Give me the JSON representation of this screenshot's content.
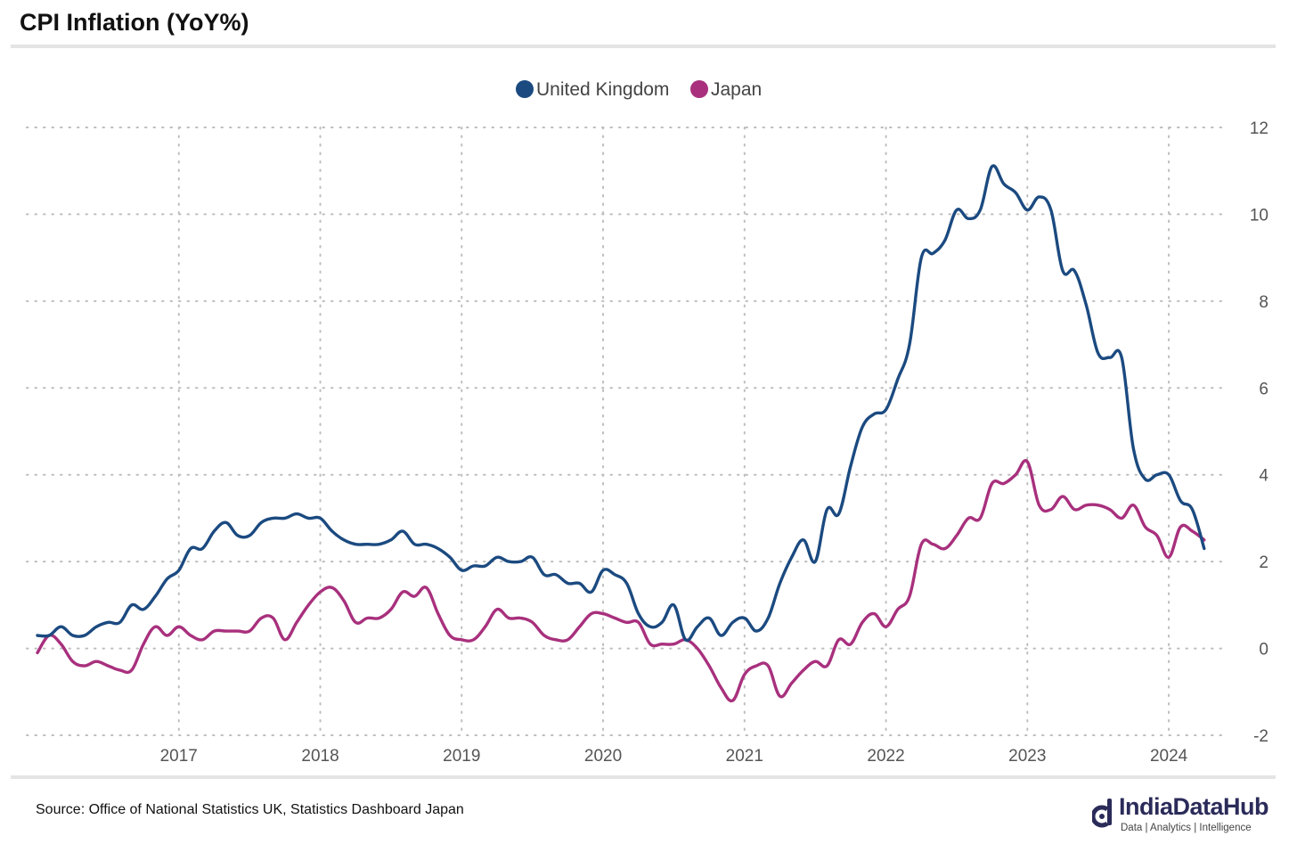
{
  "header": {
    "title": "CPI Inflation (YoY%)"
  },
  "footer": {
    "source": "Source: Office of National Statistics UK, Statistics Dashboard Japan",
    "brand_name": "IndiaDataHub",
    "brand_tagline": "Data | Analytics | Intelligence",
    "brand_icon": "india-data-hub-logo-icon"
  },
  "chart_data": {
    "type": "line",
    "title": "CPI Inflation (YoY%)",
    "xlabel": "",
    "ylabel": "",
    "x_ticks": [
      "2017",
      "2018",
      "2019",
      "2020",
      "2021",
      "2022",
      "2023",
      "2024"
    ],
    "y_ticks": [
      -2,
      0,
      2,
      4,
      6,
      8,
      10,
      12
    ],
    "ylim": [
      -2,
      12
    ],
    "xlim": [
      "2016-01",
      "2024-05"
    ],
    "y_axis_position": "right",
    "grid": "dotted",
    "legend_position": "top-center",
    "x": [
      "2016-01",
      "2016-02",
      "2016-03",
      "2016-04",
      "2016-05",
      "2016-06",
      "2016-07",
      "2016-08",
      "2016-09",
      "2016-10",
      "2016-11",
      "2016-12",
      "2017-01",
      "2017-02",
      "2017-03",
      "2017-04",
      "2017-05",
      "2017-06",
      "2017-07",
      "2017-08",
      "2017-09",
      "2017-10",
      "2017-11",
      "2017-12",
      "2018-01",
      "2018-02",
      "2018-03",
      "2018-04",
      "2018-05",
      "2018-06",
      "2018-07",
      "2018-08",
      "2018-09",
      "2018-10",
      "2018-11",
      "2018-12",
      "2019-01",
      "2019-02",
      "2019-03",
      "2019-04",
      "2019-05",
      "2019-06",
      "2019-07",
      "2019-08",
      "2019-09",
      "2019-10",
      "2019-11",
      "2019-12",
      "2020-01",
      "2020-02",
      "2020-03",
      "2020-04",
      "2020-05",
      "2020-06",
      "2020-07",
      "2020-08",
      "2020-09",
      "2020-10",
      "2020-11",
      "2020-12",
      "2021-01",
      "2021-02",
      "2021-03",
      "2021-04",
      "2021-05",
      "2021-06",
      "2021-07",
      "2021-08",
      "2021-09",
      "2021-10",
      "2021-11",
      "2021-12",
      "2022-01",
      "2022-02",
      "2022-03",
      "2022-04",
      "2022-05",
      "2022-06",
      "2022-07",
      "2022-08",
      "2022-09",
      "2022-10",
      "2022-11",
      "2022-12",
      "2023-01",
      "2023-02",
      "2023-03",
      "2023-04",
      "2023-05",
      "2023-06",
      "2023-07",
      "2023-08",
      "2023-09",
      "2023-10",
      "2023-11",
      "2023-12",
      "2024-01",
      "2024-02",
      "2024-03",
      "2024-04"
    ],
    "series": [
      {
        "name": "United Kingdom",
        "color": "#1b4a80",
        "values": [
          0.3,
          0.3,
          0.5,
          0.3,
          0.3,
          0.5,
          0.6,
          0.6,
          1.0,
          0.9,
          1.2,
          1.6,
          1.8,
          2.3,
          2.3,
          2.7,
          2.9,
          2.6,
          2.6,
          2.9,
          3.0,
          3.0,
          3.1,
          3.0,
          3.0,
          2.7,
          2.5,
          2.4,
          2.4,
          2.4,
          2.5,
          2.7,
          2.4,
          2.4,
          2.3,
          2.1,
          1.8,
          1.9,
          1.9,
          2.1,
          2.0,
          2.0,
          2.1,
          1.7,
          1.7,
          1.5,
          1.5,
          1.3,
          1.8,
          1.7,
          1.5,
          0.8,
          0.5,
          0.6,
          1.0,
          0.2,
          0.5,
          0.7,
          0.3,
          0.6,
          0.7,
          0.4,
          0.7,
          1.5,
          2.1,
          2.5,
          2.0,
          3.2,
          3.1,
          4.2,
          5.1,
          5.4,
          5.5,
          6.2,
          7.0,
          9.0,
          9.1,
          9.4,
          10.1,
          9.9,
          10.1,
          11.1,
          10.7,
          10.5,
          10.1,
          10.4,
          10.1,
          8.7,
          8.7,
          7.9,
          6.8,
          6.7,
          6.7,
          4.6,
          3.9,
          4.0,
          4.0,
          3.4,
          3.2,
          2.3
        ]
      },
      {
        "name": "Japan",
        "color": "#a8307d",
        "values": [
          -0.1,
          0.3,
          0.1,
          -0.3,
          -0.4,
          -0.3,
          -0.4,
          -0.5,
          -0.5,
          0.1,
          0.5,
          0.3,
          0.5,
          0.3,
          0.2,
          0.4,
          0.4,
          0.4,
          0.4,
          0.7,
          0.7,
          0.2,
          0.6,
          1.0,
          1.3,
          1.4,
          1.1,
          0.6,
          0.7,
          0.7,
          0.9,
          1.3,
          1.2,
          1.4,
          0.8,
          0.3,
          0.2,
          0.2,
          0.5,
          0.9,
          0.7,
          0.7,
          0.6,
          0.3,
          0.2,
          0.2,
          0.5,
          0.8,
          0.8,
          0.7,
          0.6,
          0.6,
          0.1,
          0.1,
          0.1,
          0.2,
          0.0,
          -0.4,
          -0.9,
          -1.2,
          -0.6,
          -0.4,
          -0.4,
          -1.1,
          -0.8,
          -0.5,
          -0.3,
          -0.4,
          0.2,
          0.1,
          0.6,
          0.8,
          0.5,
          0.9,
          1.2,
          2.4,
          2.4,
          2.3,
          2.6,
          3.0,
          3.0,
          3.8,
          3.8,
          4.0,
          4.3,
          3.3,
          3.2,
          3.5,
          3.2,
          3.3,
          3.3,
          3.2,
          3.0,
          3.3,
          2.8,
          2.6,
          2.1,
          2.8,
          2.7,
          2.5
        ]
      }
    ]
  }
}
